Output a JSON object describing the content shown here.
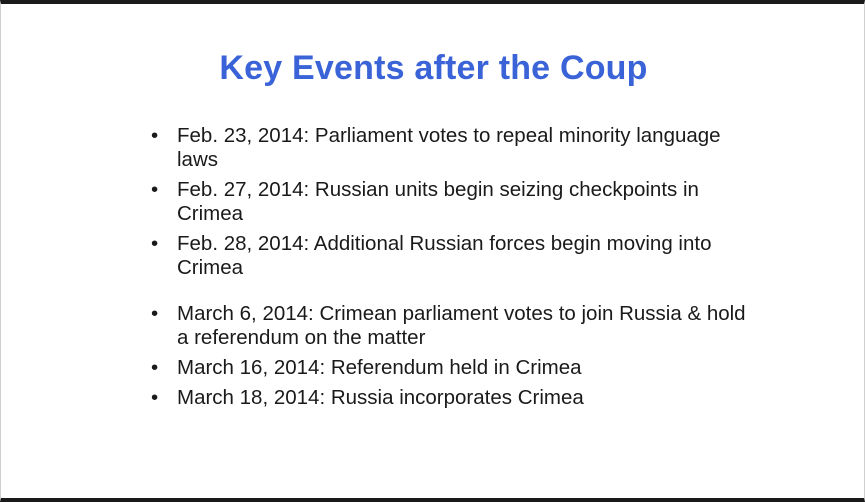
{
  "slide": {
    "title": "Key Events after the Coup",
    "bullet_glyph": "•",
    "items": [
      {
        "text": "Feb. 23, 2014: Parliament votes to repeal minority language laws"
      },
      {
        "text": "Feb. 27, 2014: Russian units begin seizing checkpoints in Crimea"
      },
      {
        "text": "Feb. 28, 2014: Additional Russian forces begin moving into Crimea"
      },
      {
        "text": "March 6, 2014: Crimean parliament votes to join Russia & hold a referendum on the matter"
      },
      {
        "text": "March 16, 2014: Referendum held in Crimea"
      },
      {
        "text": "March 18, 2014: Russia incorporates Crimea"
      }
    ],
    "colors": {
      "title": "#3a63d8",
      "text": "#1a1a1a",
      "frame": "#1a1a1a"
    }
  }
}
